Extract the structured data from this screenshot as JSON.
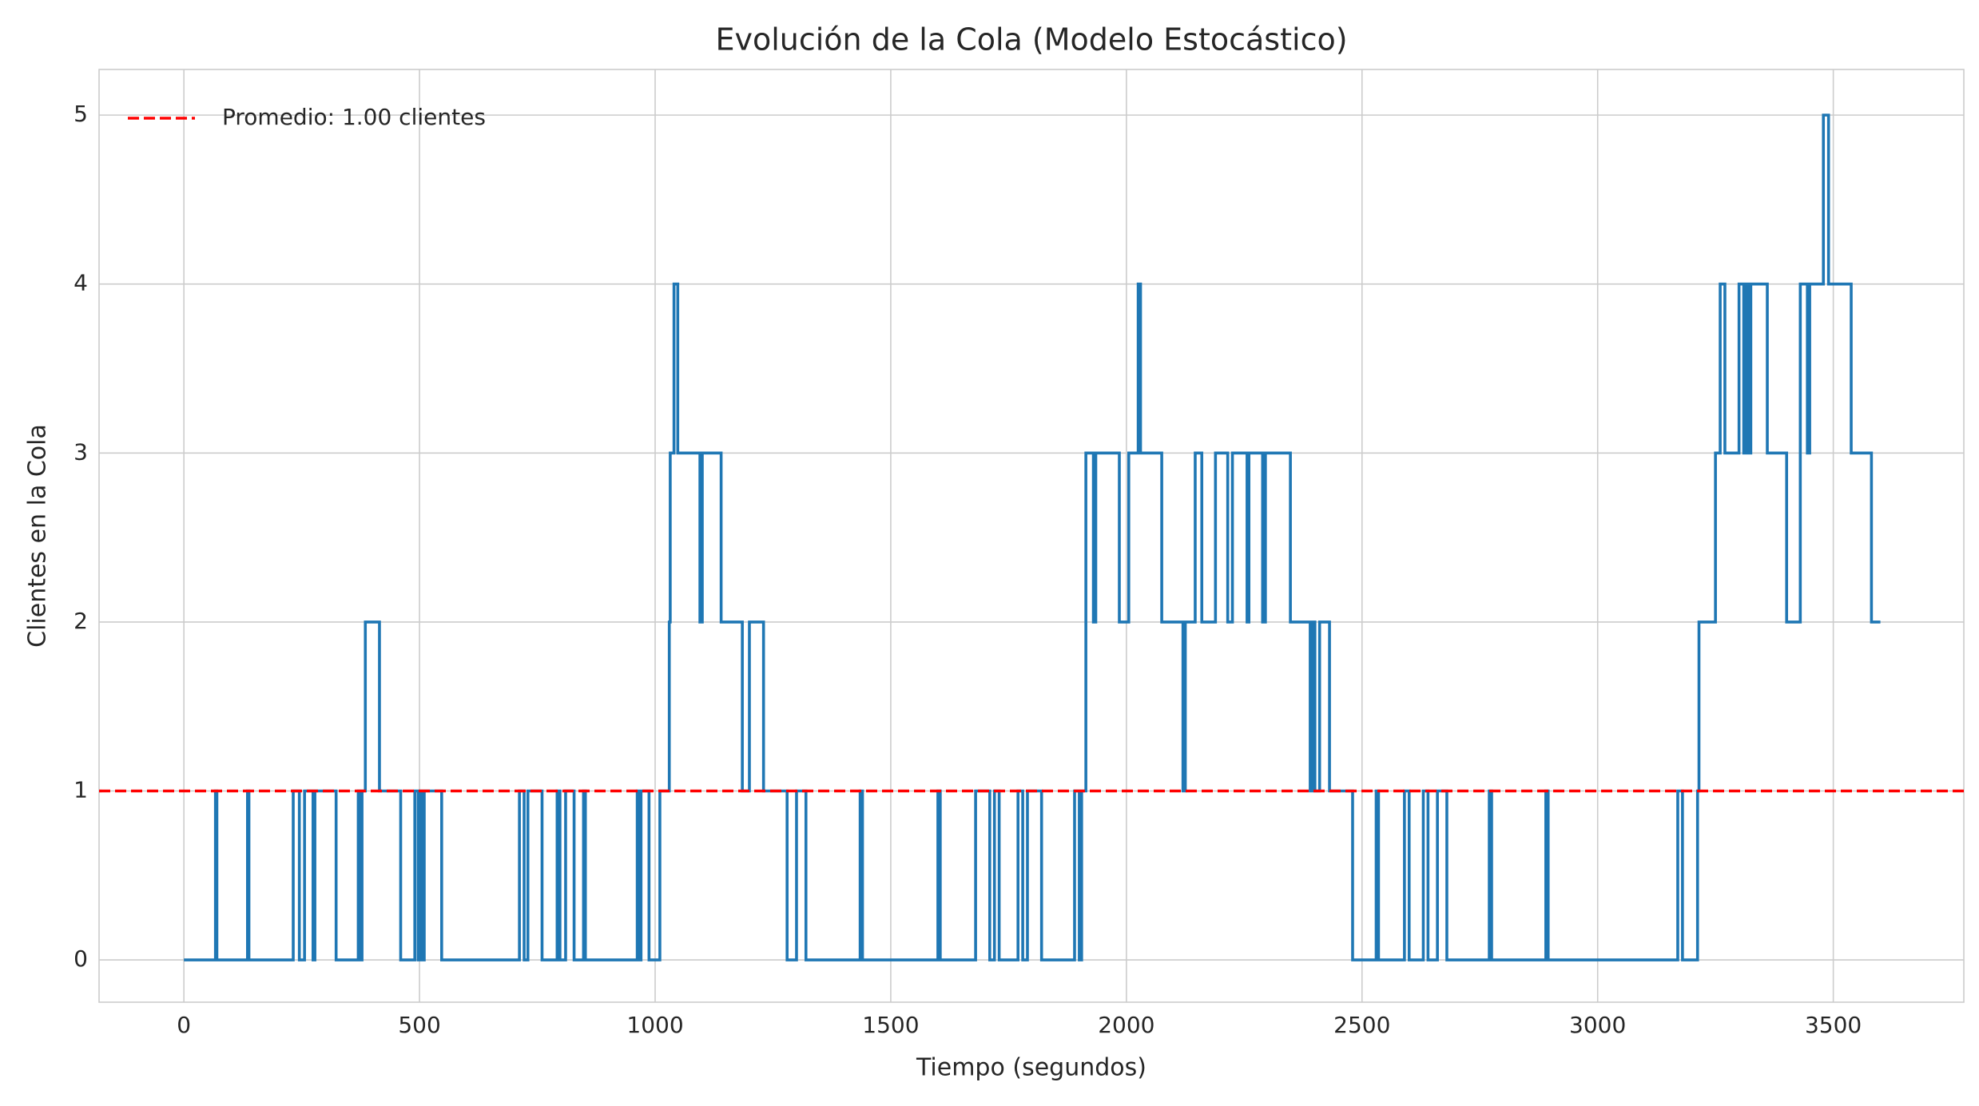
{
  "chart_data": {
    "type": "line",
    "step": "post",
    "title": "Evolución de la Cola (Modelo Estocástico)",
    "xlabel": "Tiempo (segundos)",
    "ylabel": "Clientes en la Cola",
    "color": "#1f77b4",
    "x": [
      0,
      67,
      70,
      135,
      138,
      232,
      245,
      256,
      274,
      278,
      323,
      370,
      373,
      378,
      385,
      415,
      460,
      490,
      497,
      500,
      505,
      510,
      547,
      712,
      722,
      730,
      760,
      792,
      798,
      810,
      828,
      848,
      852,
      962,
      966,
      970,
      987,
      1010,
      1030,
      1032,
      1040,
      1048,
      1095,
      1100,
      1140,
      1185,
      1200,
      1230,
      1280,
      1300,
      1320,
      1435,
      1440,
      1600,
      1605,
      1680,
      1710,
      1720,
      1730,
      1770,
      1780,
      1790,
      1820,
      1890,
      1900,
      1905,
      1914,
      1930,
      1935,
      1985,
      2005,
      2025,
      2030,
      2075,
      2120,
      2125,
      2146,
      2160,
      2189,
      2215,
      2225,
      2256,
      2260,
      2289,
      2295,
      2316,
      2348,
      2390,
      2395,
      2400,
      2410,
      2431,
      2480,
      2530,
      2535,
      2590,
      2600,
      2630,
      2640,
      2660,
      2680,
      2770,
      2775,
      2890,
      2895,
      3170,
      3180,
      3212,
      3215,
      3250,
      3260,
      3270,
      3300,
      3310,
      3315,
      3320,
      3325,
      3360,
      3401,
      3430,
      3445,
      3450,
      3479,
      3490,
      3538,
      3581,
      3600
    ],
    "values": [
      0,
      1,
      0,
      1,
      0,
      1,
      0,
      1,
      0,
      1,
      0,
      1,
      0,
      1,
      2,
      1,
      0,
      1,
      0,
      1,
      0,
      1,
      0,
      1,
      0,
      1,
      0,
      1,
      0,
      1,
      0,
      1,
      0,
      1,
      0,
      1,
      0,
      1,
      2,
      3,
      4,
      3,
      2,
      3,
      2,
      1,
      2,
      1,
      0,
      1,
      0,
      1,
      0,
      1,
      0,
      1,
      0,
      1,
      0,
      1,
      0,
      1,
      0,
      1,
      0,
      1,
      3,
      2,
      3,
      2,
      3,
      4,
      3,
      2,
      1,
      2,
      3,
      2,
      3,
      2,
      3,
      2,
      3,
      2,
      3,
      3,
      2,
      1,
      2,
      1,
      2,
      1,
      0,
      1,
      0,
      1,
      0,
      1,
      0,
      1,
      0,
      1,
      0,
      1,
      0,
      1,
      0,
      1,
      2,
      3,
      4,
      3,
      4,
      3,
      4,
      3,
      4,
      3,
      2,
      4,
      3,
      4,
      5,
      4,
      3,
      2,
      2
    ],
    "mean_line": {
      "value": 1,
      "label": "Promedio: 1.00 clientes",
      "color": "#ff0000"
    },
    "xlim": [
      -180,
      3777
    ],
    "ylim": [
      -0.25,
      5.27
    ],
    "xticks": [
      0,
      500,
      1000,
      1500,
      2000,
      2500,
      3000,
      3500
    ],
    "yticks": [
      0,
      1,
      2,
      3,
      4,
      5
    ],
    "grid": true,
    "legend": "upper left"
  }
}
